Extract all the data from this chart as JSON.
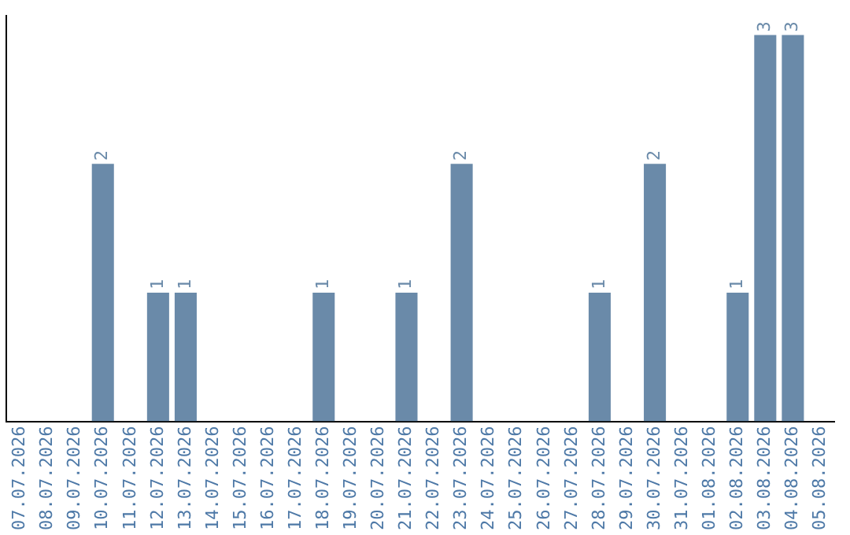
{
  "chart_data": {
    "type": "bar",
    "categories": [
      "07.07.2026",
      "08.07.2026",
      "09.07.2026",
      "10.07.2026",
      "11.07.2026",
      "12.07.2026",
      "13.07.2026",
      "14.07.2026",
      "15.07.2026",
      "16.07.2026",
      "17.07.2026",
      "18.07.2026",
      "19.07.2026",
      "20.07.2026",
      "21.07.2026",
      "22.07.2026",
      "23.07.2026",
      "24.07.2026",
      "25.07.2026",
      "26.07.2026",
      "27.07.2026",
      "28.07.2026",
      "29.07.2026",
      "30.07.2026",
      "31.07.2026",
      "01.08.2026",
      "02.08.2026",
      "03.08.2026",
      "04.08.2026",
      "05.08.2026"
    ],
    "values": [
      0,
      0,
      0,
      2,
      0,
      1,
      1,
      0,
      0,
      0,
      0,
      1,
      0,
      0,
      1,
      0,
      2,
      0,
      0,
      0,
      0,
      1,
      0,
      2,
      0,
      0,
      1,
      3,
      3,
      0
    ],
    "value_labels": [
      null,
      null,
      null,
      "2",
      null,
      "1",
      "1",
      null,
      null,
      null,
      null,
      "1",
      null,
      null,
      "1",
      null,
      "2",
      null,
      null,
      null,
      null,
      "1",
      null,
      "2",
      null,
      null,
      "1",
      "3",
      "3",
      null
    ],
    "color": "#6a8aa9",
    "ylim": [
      0,
      3.15
    ],
    "tick_labels": "x",
    "grid": false,
    "legend": false
  }
}
